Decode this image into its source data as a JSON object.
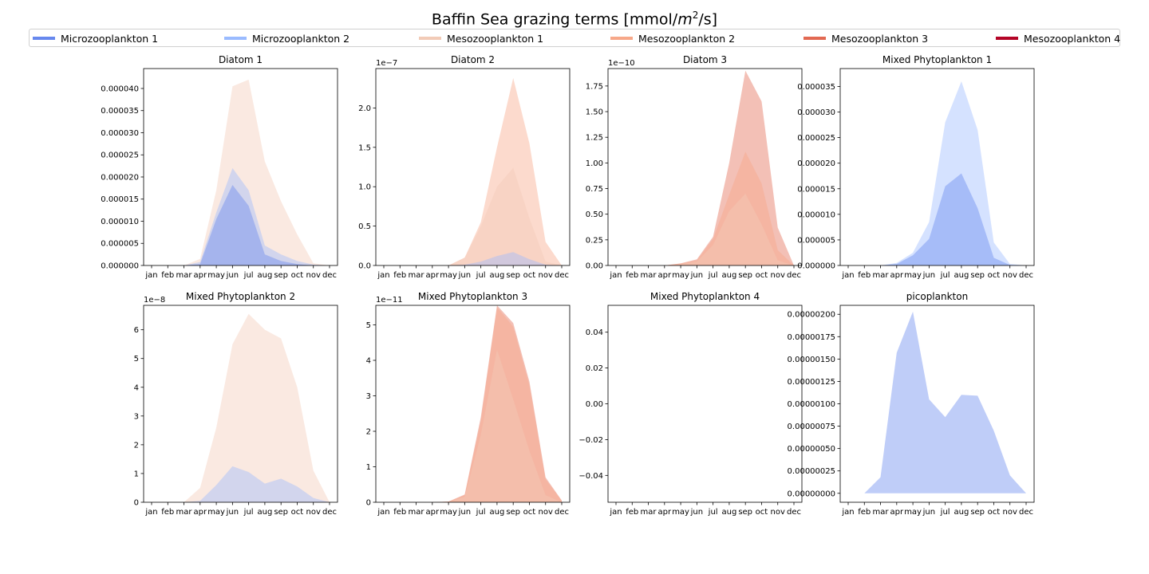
{
  "figure": {
    "title_prefix": "Baffin Sea grazing terms [mmol/",
    "title_math": "m",
    "title_sup": "2",
    "title_suffix": "/s]"
  },
  "legend": {
    "placement": "top",
    "items": [
      {
        "label": "Microzooplankton 1",
        "color": "#6788ee"
      },
      {
        "label": "Microzooplankton 2",
        "color": "#9abbff"
      },
      {
        "label": "Mesozooplankton 1",
        "color": "#f2cbb7"
      },
      {
        "label": "Mesozooplankton 2",
        "color": "#f7a889"
      },
      {
        "label": "Mesozooplankton 3",
        "color": "#e26952"
      },
      {
        "label": "Mesozooplankton 4",
        "color": "#b40426"
      }
    ]
  },
  "chart_data": [
    {
      "type": "area",
      "title": "Diatom 1",
      "categories": [
        "jan",
        "feb",
        "mar",
        "apr",
        "may",
        "jun",
        "jul",
        "aug",
        "sep",
        "oct",
        "nov",
        "dec"
      ],
      "ylim": [
        0,
        4.45e-05
      ],
      "yticks": [
        0,
        5e-06,
        1e-05,
        1.5e-05,
        2e-05,
        2.5e-05,
        3e-05,
        3.5e-05,
        4e-05
      ],
      "ytick_labels": [
        "0.000000",
        "0.000005",
        "0.000010",
        "0.000015",
        "0.000020",
        "0.000025",
        "0.000030",
        "0.000035",
        "0.000040"
      ],
      "offset_label": "",
      "series": [
        {
          "legend_index": 2,
          "values": [
            0,
            0,
            0,
            1.5e-06,
            1.7e-05,
            4.05e-05,
            4.2e-05,
            2.35e-05,
            1.45e-05,
            7e-06,
            5e-07,
            0
          ]
        },
        {
          "legend_index": 1,
          "values": [
            0,
            0,
            0,
            8e-07,
            1.2e-05,
            2.2e-05,
            1.7e-05,
            4.5e-06,
            2.5e-06,
            1e-06,
            2e-07,
            0
          ]
        },
        {
          "legend_index": 0,
          "values": [
            0,
            0,
            0,
            3e-07,
            1.05e-05,
            1.82e-05,
            1.35e-05,
            2.5e-06,
            1e-06,
            3e-07,
            0,
            0
          ]
        }
      ]
    },
    {
      "type": "area",
      "title": "Diatom 2",
      "categories": [
        "jan",
        "feb",
        "mar",
        "apr",
        "may",
        "jun",
        "jul",
        "aug",
        "sep",
        "oct",
        "nov",
        "dec"
      ],
      "ylim": [
        0,
        2.5
      ],
      "yticks": [
        0,
        0.5,
        1.0,
        1.5,
        2.0
      ],
      "ytick_labels": [
        "0.0",
        "0.5",
        "1.0",
        "1.5",
        "2.0"
      ],
      "offset_label": "1e−7",
      "series": [
        {
          "legend_index": 3,
          "values": [
            0,
            0,
            0,
            0,
            0,
            0.1,
            0.55,
            1.5,
            2.38,
            1.55,
            0.3,
            0
          ]
        },
        {
          "legend_index": 2,
          "values": [
            0,
            0,
            0,
            0,
            0,
            0.1,
            0.5,
            1.0,
            1.24,
            0.6,
            0.05,
            0
          ]
        },
        {
          "legend_index": 1,
          "values": [
            0,
            0,
            0,
            0,
            0,
            0.01,
            0.05,
            0.12,
            0.17,
            0.08,
            0.01,
            0
          ]
        }
      ]
    },
    {
      "type": "area",
      "title": "Diatom 3",
      "categories": [
        "jan",
        "feb",
        "mar",
        "apr",
        "may",
        "jun",
        "jul",
        "aug",
        "sep",
        "oct",
        "nov",
        "dec"
      ],
      "ylim": [
        0,
        1.92
      ],
      "yticks": [
        0,
        0.25,
        0.5,
        0.75,
        1.0,
        1.25,
        1.5,
        1.75
      ],
      "ytick_labels": [
        "0.00",
        "0.25",
        "0.50",
        "0.75",
        "1.00",
        "1.25",
        "1.50",
        "1.75"
      ],
      "offset_label": "1e−10",
      "series": [
        {
          "legend_index": 4,
          "values": [
            0,
            0,
            0,
            0,
            0.02,
            0.06,
            0.28,
            1.0,
            1.9,
            1.6,
            0.37,
            0
          ]
        },
        {
          "legend_index": 3,
          "values": [
            0,
            0,
            0,
            0,
            0.02,
            0.05,
            0.26,
            0.69,
            1.11,
            0.8,
            0.15,
            0
          ]
        },
        {
          "legend_index": 2,
          "values": [
            0,
            0,
            0,
            0,
            0.01,
            0.04,
            0.2,
            0.53,
            0.7,
            0.4,
            0.05,
            0
          ]
        }
      ]
    },
    {
      "type": "area",
      "title": "Mixed Phytoplankton 1",
      "categories": [
        "jan",
        "feb",
        "mar",
        "apr",
        "may",
        "jun",
        "jul",
        "aug",
        "sep",
        "oct",
        "nov",
        "dec"
      ],
      "ylim": [
        0,
        3.85e-05
      ],
      "yticks": [
        0,
        5e-06,
        1e-05,
        1.5e-05,
        2e-05,
        2.5e-05,
        3e-05,
        3.5e-05
      ],
      "ytick_labels": [
        "0.000000",
        "0.000005",
        "0.000010",
        "0.000015",
        "0.000020",
        "0.000025",
        "0.000030",
        "0.000035"
      ],
      "offset_label": "",
      "series": [
        {
          "legend_index": 1,
          "values": [
            0,
            0,
            0,
            5e-07,
            2.5e-06,
            8.5e-06,
            2.8e-05,
            3.6e-05,
            2.65e-05,
            4.5e-06,
            3e-07,
            0
          ]
        },
        {
          "legend_index": 0,
          "values": [
            0,
            0,
            0,
            3e-07,
            2e-06,
            5.2e-06,
            1.55e-05,
            1.8e-05,
            1.12e-05,
            1.5e-06,
            1e-07,
            0
          ]
        }
      ]
    },
    {
      "type": "area",
      "title": "Mixed Phytoplankton 2",
      "categories": [
        "jan",
        "feb",
        "mar",
        "apr",
        "may",
        "jun",
        "jul",
        "aug",
        "sep",
        "oct",
        "nov",
        "dec"
      ],
      "ylim": [
        0,
        6.85
      ],
      "yticks": [
        0,
        1,
        2,
        3,
        4,
        5,
        6
      ],
      "ytick_labels": [
        "0",
        "1",
        "2",
        "3",
        "4",
        "5",
        "6"
      ],
      "offset_label": "1e−8",
      "series": [
        {
          "legend_index": 2,
          "values": [
            0,
            0,
            0,
            0.5,
            2.6,
            5.5,
            6.55,
            6.0,
            5.7,
            4.0,
            1.1,
            0
          ]
        },
        {
          "legend_index": 1,
          "values": [
            0,
            0,
            0,
            0.05,
            0.6,
            1.25,
            1.05,
            0.65,
            0.82,
            0.55,
            0.15,
            0
          ]
        }
      ]
    },
    {
      "type": "area",
      "title": "Mixed Phytoplankton 3",
      "categories": [
        "jan",
        "feb",
        "mar",
        "apr",
        "may",
        "jun",
        "jul",
        "aug",
        "sep",
        "oct",
        "nov",
        "dec"
      ],
      "ylim": [
        0,
        5.55
      ],
      "yticks": [
        0,
        1,
        2,
        3,
        4,
        5
      ],
      "ytick_labels": [
        "0",
        "1",
        "2",
        "3",
        "4",
        "5"
      ],
      "offset_label": "1e−11",
      "series": [
        {
          "legend_index": 4,
          "values": [
            0,
            0,
            0,
            0,
            0.02,
            0.22,
            2.4,
            5.55,
            5.05,
            3.4,
            0.7,
            0.05
          ]
        },
        {
          "legend_index": 3,
          "values": [
            0,
            0,
            0,
            0,
            0.02,
            0.2,
            2.3,
            5.5,
            4.95,
            3.3,
            0.65,
            0.05
          ]
        },
        {
          "legend_index": 2,
          "values": [
            0,
            0,
            0,
            0,
            0.01,
            0.15,
            1.9,
            4.3,
            2.9,
            1.45,
            0.2,
            0
          ]
        }
      ]
    },
    {
      "type": "area",
      "title": "Mixed Phytoplankton 4",
      "categories": [
        "jan",
        "feb",
        "mar",
        "apr",
        "may",
        "jun",
        "jul",
        "aug",
        "sep",
        "oct",
        "nov",
        "dec"
      ],
      "ylim": [
        -0.055,
        0.055
      ],
      "yticks": [
        -0.04,
        -0.02,
        0,
        0.02,
        0.04
      ],
      "ytick_labels": [
        "−0.04",
        "−0.02",
        "0.00",
        "0.02",
        "0.04"
      ],
      "offset_label": "",
      "series": []
    },
    {
      "type": "area",
      "title": "picoplankton",
      "categories": [
        "jan",
        "feb",
        "mar",
        "apr",
        "may",
        "jun",
        "jul",
        "aug",
        "sep",
        "oct",
        "nov",
        "dec"
      ],
      "ylim": [
        -1e-07,
        2.1e-06
      ],
      "yticks": [
        0,
        2.5e-07,
        5e-07,
        7.5e-07,
        1e-06,
        1.25e-06,
        1.5e-06,
        1.75e-06,
        2e-06
      ],
      "ytick_labels": [
        "0.00000000",
        "0.00000025",
        "0.00000050",
        "0.00000075",
        "0.00000100",
        "0.00000125",
        "0.00000150",
        "0.00000175",
        "0.00000200"
      ],
      "offset_label": "",
      "series": [
        {
          "legend_index": 0,
          "values": [
            0,
            0,
            1.8e-07,
            1.57e-06,
            2.03e-06,
            1.05e-06,
            8.5e-07,
            1.1e-06,
            1.09e-06,
            7e-07,
            2e-07,
            0
          ]
        }
      ]
    }
  ]
}
